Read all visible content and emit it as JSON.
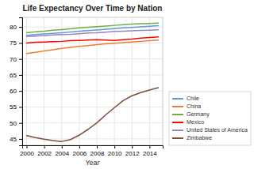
{
  "chart_data": {
    "type": "line",
    "title": "Life Expectancy Over Time by Nation",
    "xlabel": "Year",
    "x": [
      2000,
      2001,
      2002,
      2003,
      2004,
      2005,
      2006,
      2007,
      2008,
      2009,
      2010,
      2011,
      2012,
      2013,
      2014,
      2015
    ],
    "series": [
      {
        "name": "Chile",
        "color": "#5b9bd5",
        "values": [
          77.4,
          77.6,
          77.8,
          78.0,
          78.2,
          78.45,
          78.65,
          78.85,
          79.05,
          79.3,
          79.5,
          79.7,
          79.85,
          80.05,
          80.2,
          80.4
        ]
      },
      {
        "name": "China",
        "color": "#ed7d31",
        "values": [
          71.7,
          72.1,
          72.5,
          72.9,
          73.3,
          73.6,
          73.9,
          74.2,
          74.5,
          74.7,
          74.9,
          75.1,
          75.3,
          75.5,
          75.7,
          75.9
        ]
      },
      {
        "name": "Germany",
        "color": "#70ad47",
        "values": [
          78.2,
          78.5,
          78.7,
          79.0,
          79.2,
          79.4,
          79.7,
          79.9,
          80.1,
          80.3,
          80.5,
          80.7,
          80.9,
          81.0,
          81.1,
          81.2
        ]
      },
      {
        "name": "Mexico",
        "color": "#ff0000",
        "values": [
          75.0,
          75.2,
          75.3,
          75.4,
          75.5,
          75.7,
          75.8,
          75.9,
          76.0,
          75.9,
          75.8,
          76.0,
          76.2,
          76.5,
          76.7,
          76.9
        ]
      },
      {
        "name": "United States of America",
        "color": "#9b83c4",
        "values": [
          77.0,
          77.15,
          77.3,
          77.5,
          77.6,
          77.7,
          77.9,
          78.1,
          78.2,
          78.4,
          78.6,
          78.7,
          78.8,
          78.9,
          79.0,
          79.1
        ]
      },
      {
        "name": "Zimbabwe",
        "color": "#7b4f3a",
        "values": [
          46.0,
          45.4,
          44.9,
          44.5,
          44.2,
          44.8,
          46.2,
          48.0,
          50.0,
          52.5,
          54.8,
          57.0,
          58.5,
          59.5,
          60.3,
          61.0
        ]
      }
    ],
    "xlim": [
      1999.5,
      2015.5
    ],
    "ylim": [
      43,
      83
    ],
    "xticks": [
      2000,
      2002,
      2004,
      2006,
      2008,
      2010,
      2012,
      2014
    ],
    "yticks": [
      45,
      50,
      55,
      60,
      65,
      70,
      75,
      80
    ],
    "grid": true,
    "legend": "lower right"
  }
}
